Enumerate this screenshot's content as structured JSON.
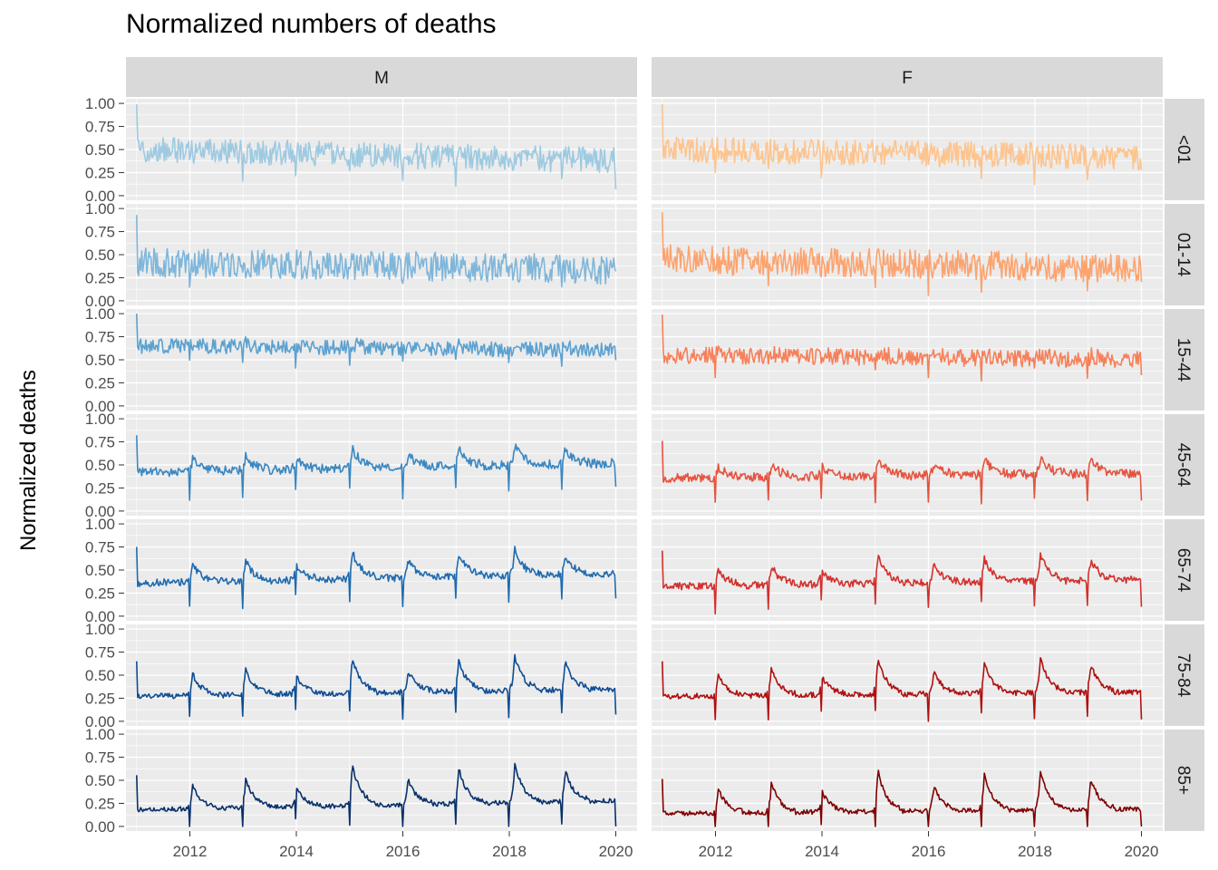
{
  "chart_data": {
    "type": "line",
    "title": "Normalized numbers of deaths",
    "xlabel": "",
    "ylabel": "Normalized deaths",
    "facet_columns": [
      "M",
      "F"
    ],
    "facet_rows": [
      "<01",
      "01-14",
      "15-44",
      "45-64",
      "65-74",
      "75-84",
      "85+"
    ],
    "x_ticks": [
      "2012",
      "2014",
      "2016",
      "2018",
      "2020"
    ],
    "y_ticks": [
      "0.00",
      "0.25",
      "0.50",
      "0.75",
      "1.00"
    ],
    "xlim": [
      2010.8,
      2020.4
    ],
    "ylim": [
      -0.05,
      1.05
    ],
    "grid": true,
    "background": "#EBEBEB",
    "strip_color": "#D9D9D9",
    "colors": {
      "M": [
        "#9ECAE1",
        "#7FB6DA",
        "#5BA1D0",
        "#3A87C1",
        "#1F6BB0",
        "#0E4D94",
        "#08306B"
      ],
      "F": [
        "#FDC48E",
        "#FDA36E",
        "#F6805A",
        "#E5533F",
        "#D3302C",
        "#B0100F",
        "#7F0000"
      ]
    },
    "series_summary": [
      {
        "row": "<01",
        "M": {
          "baseline": 0.5,
          "seasonal": 0.0,
          "noise": 0.14,
          "trend": -0.12
        },
        "F": {
          "baseline": 0.5,
          "seasonal": 0.0,
          "noise": 0.14,
          "trend": -0.08
        }
      },
      {
        "row": "01-14",
        "M": {
          "baseline": 0.42,
          "seasonal": 0.0,
          "noise": 0.16,
          "trend": -0.08
        },
        "F": {
          "baseline": 0.45,
          "seasonal": 0.0,
          "noise": 0.16,
          "trend": -0.1
        }
      },
      {
        "row": "15-44",
        "M": {
          "baseline": 0.65,
          "seasonal": 0.05,
          "noise": 0.08,
          "trend": -0.05
        },
        "F": {
          "baseline": 0.55,
          "seasonal": 0.05,
          "noise": 0.09,
          "trend": -0.05
        }
      },
      {
        "row": "45-64",
        "M": {
          "baseline": 0.42,
          "seasonal": 0.22,
          "noise": 0.05,
          "trend": 0.1
        },
        "F": {
          "baseline": 0.36,
          "seasonal": 0.2,
          "noise": 0.05,
          "trend": 0.05
        }
      },
      {
        "row": "65-74",
        "M": {
          "baseline": 0.36,
          "seasonal": 0.3,
          "noise": 0.04,
          "trend": 0.1
        },
        "F": {
          "baseline": 0.32,
          "seasonal": 0.3,
          "noise": 0.04,
          "trend": 0.08
        }
      },
      {
        "row": "75-84",
        "M": {
          "baseline": 0.27,
          "seasonal": 0.4,
          "noise": 0.03,
          "trend": 0.08
        },
        "F": {
          "baseline": 0.27,
          "seasonal": 0.4,
          "noise": 0.03,
          "trend": 0.05
        }
      },
      {
        "row": "85+",
        "M": {
          "baseline": 0.18,
          "seasonal": 0.45,
          "noise": 0.025,
          "trend": 0.1
        },
        "F": {
          "baseline": 0.14,
          "seasonal": 0.45,
          "noise": 0.025,
          "trend": 0.05
        }
      }
    ]
  }
}
